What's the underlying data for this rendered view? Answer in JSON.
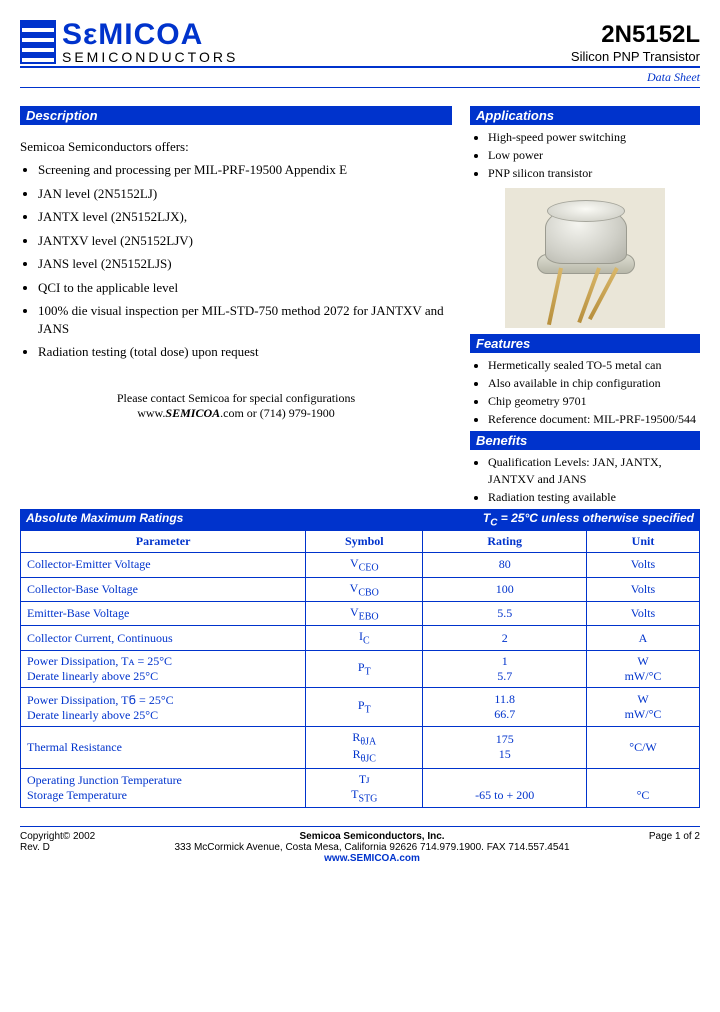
{
  "header": {
    "company_top": "SεMICOA",
    "company_bottom": "SEMICONDUCTORS",
    "part_number": "2N5152L",
    "subtitle": "Silicon PNP Transistor",
    "doc_label": "Data Sheet"
  },
  "description": {
    "title": "Description",
    "intro": "Semicoa Semiconductors offers:",
    "items": [
      "Screening and processing per MIL-PRF-19500 Appendix E",
      "JAN level (2N5152LJ)",
      "JANTX level (2N5152LJX),",
      "JANTXV level (2N5152LJV)",
      "JANS level (2N5152LJS)",
      "QCI to the applicable level",
      "100% die visual inspection per MIL-STD-750 method 2072 for JANTXV and JANS",
      "Radiation testing (total dose) upon request"
    ],
    "contact_line1": "Please contact Semicoa for special configurations",
    "contact_line2": "www.SEMICOA.com or (714) 979-1900"
  },
  "applications": {
    "title": "Applications",
    "items": [
      "High-speed power switching",
      "Low power",
      "PNP silicon transistor"
    ]
  },
  "features": {
    "title": "Features",
    "items": [
      "Hermetically sealed TO-5 metal can",
      "Also available in chip configuration",
      "Chip geometry 9701",
      "Reference document: MIL-PRF-19500/544"
    ]
  },
  "benefits": {
    "title": "Benefits",
    "items": [
      "Qualification Levels: JAN, JANTX, JANTXV and JANS",
      "Radiation testing available"
    ]
  },
  "ratings": {
    "title": "Absolute Maximum Ratings",
    "condition": "TᲜ = 25°C unless otherwise specified",
    "columns": [
      "Parameter",
      "Symbol",
      "Rating",
      "Unit"
    ],
    "rows": [
      {
        "param": "Collector-Emitter Voltage",
        "symbol": "V",
        "sub": "CEO",
        "rating": "80",
        "unit": "Volts"
      },
      {
        "param": "Collector-Base Voltage",
        "symbol": "V",
        "sub": "CBO",
        "rating": "100",
        "unit": "Volts"
      },
      {
        "param": "Emitter-Base Voltage",
        "symbol": "V",
        "sub": "EBO",
        "rating": "5.5",
        "unit": "Volts"
      },
      {
        "param": "Collector Current, Continuous",
        "symbol": "I",
        "sub": "C",
        "rating": "2",
        "unit": "A"
      },
      {
        "param": "Power Dissipation, Tᴀ = 25°C\nDerate linearly above 25°C",
        "symbol": "P",
        "sub": "T",
        "rating": "1\n5.7",
        "unit": "W\nmW/°C"
      },
      {
        "param": "Power Dissipation, TᲜ = 25°C\nDerate linearly above 25°C",
        "symbol": "P",
        "sub": "T",
        "rating": "11.8\n66.7",
        "unit": "W\nmW/°C"
      },
      {
        "param": "Thermal Resistance",
        "symbol": "R\nR",
        "sub": "θJA\nθJC",
        "rating": "175\n15",
        "unit": "°C/W"
      },
      {
        "param": "Operating Junction Temperature\nStorage Temperature",
        "symbol": "Tᴊ\nT",
        "sub": "\nSTG",
        "rating": "\n-65 to + 200",
        "unit": "\n°C"
      }
    ]
  },
  "footer": {
    "copyright": "Copyright© 2002",
    "rev": "Rev. D",
    "company": "Semicoa Semiconductors, Inc.",
    "address": "333 McCormick Avenue, Costa Mesa, California 92626  714.979.1900.  FAX 714.557.4541",
    "url": "www.SEMICOA.com",
    "page": "Page 1 of 2"
  },
  "colors": {
    "brand_blue": "#0033cc",
    "image_bg": "#eae6d8"
  }
}
